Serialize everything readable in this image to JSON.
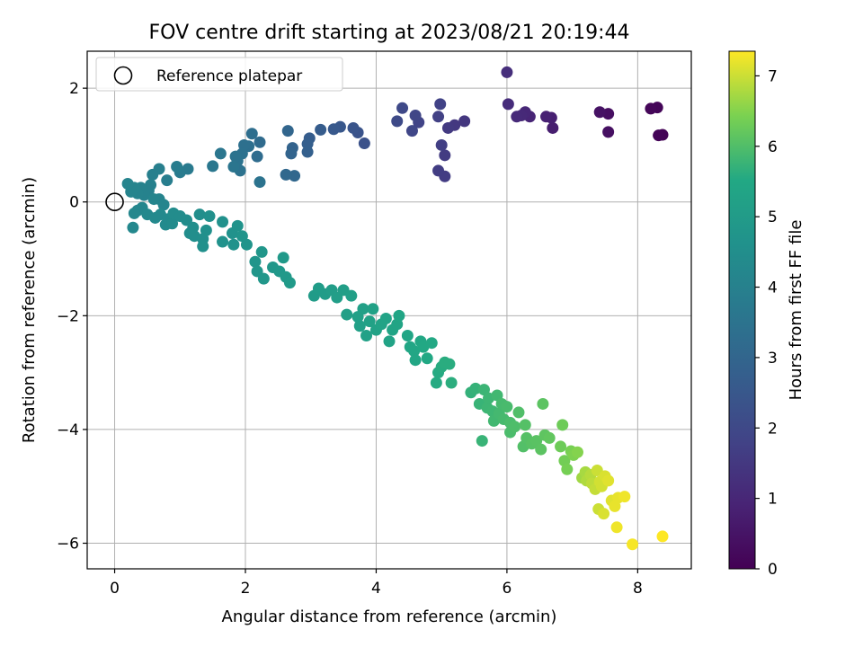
{
  "chart_data": {
    "type": "scatter",
    "title": "FOV centre drift starting at 2023/08/21 20:19:44",
    "xlabel": "Angular distance from reference (arcmin)",
    "ylabel": "Rotation from reference (arcmin)",
    "xlim": [
      -0.42,
      8.82
    ],
    "ylim": [
      -6.45,
      2.65
    ],
    "x_ticks": [
      0,
      2,
      4,
      6,
      8
    ],
    "y_ticks": [
      2,
      0,
      -2,
      -4,
      -6
    ],
    "x_tick_labels": [
      "0",
      "2",
      "4",
      "6",
      "8"
    ],
    "y_tick_labels": [
      "2",
      "0",
      "−2",
      "−4",
      "−6"
    ],
    "grid": true,
    "legend": {
      "position": "top-left",
      "entries": [
        "Reference platepar"
      ]
    },
    "reference_point": {
      "x": 0,
      "y": 0,
      "label": "Reference platepar"
    },
    "colormap": "viridis",
    "colorbar": {
      "label": "Hours from first FF file",
      "min": 0,
      "max": 7.35,
      "ticks": [
        0,
        1,
        2,
        3,
        4,
        5,
        6,
        7
      ],
      "tick_labels": [
        "0",
        "1",
        "2",
        "3",
        "4",
        "5",
        "6",
        "7"
      ]
    },
    "points": [
      {
        "x": 8.38,
        "y": 1.18,
        "c": 0.05
      },
      {
        "x": 8.32,
        "y": 1.17,
        "c": 0.08
      },
      {
        "x": 8.3,
        "y": 1.66,
        "c": 0.1
      },
      {
        "x": 8.2,
        "y": 1.64,
        "c": 0.15
      },
      {
        "x": 7.55,
        "y": 1.55,
        "c": 0.35
      },
      {
        "x": 7.55,
        "y": 1.23,
        "c": 0.4
      },
      {
        "x": 7.42,
        "y": 1.58,
        "c": 0.45
      },
      {
        "x": 6.7,
        "y": 1.3,
        "c": 0.75
      },
      {
        "x": 6.68,
        "y": 1.48,
        "c": 0.8
      },
      {
        "x": 6.6,
        "y": 1.5,
        "c": 0.85
      },
      {
        "x": 6.35,
        "y": 1.5,
        "c": 0.95
      },
      {
        "x": 6.28,
        "y": 1.58,
        "c": 1.0
      },
      {
        "x": 6.22,
        "y": 1.52,
        "c": 1.05
      },
      {
        "x": 6.15,
        "y": 1.5,
        "c": 1.1
      },
      {
        "x": 6.02,
        "y": 1.72,
        "c": 1.15
      },
      {
        "x": 6.0,
        "y": 2.28,
        "c": 1.2
      },
      {
        "x": 5.35,
        "y": 1.42,
        "c": 1.45
      },
      {
        "x": 5.2,
        "y": 1.35,
        "c": 1.5
      },
      {
        "x": 5.1,
        "y": 1.3,
        "c": 1.55
      },
      {
        "x": 5.05,
        "y": 0.82,
        "c": 1.6
      },
      {
        "x": 5.05,
        "y": 0.45,
        "c": 1.62
      },
      {
        "x": 4.95,
        "y": 0.55,
        "c": 1.65
      },
      {
        "x": 5.0,
        "y": 1.0,
        "c": 1.7
      },
      {
        "x": 4.95,
        "y": 1.5,
        "c": 1.75
      },
      {
        "x": 4.98,
        "y": 1.72,
        "c": 1.78
      },
      {
        "x": 4.65,
        "y": 1.4,
        "c": 1.85
      },
      {
        "x": 4.6,
        "y": 1.52,
        "c": 1.9
      },
      {
        "x": 4.55,
        "y": 1.25,
        "c": 1.95
      },
      {
        "x": 4.4,
        "y": 1.65,
        "c": 2.0
      },
      {
        "x": 4.32,
        "y": 1.42,
        "c": 2.05
      },
      {
        "x": 3.82,
        "y": 1.03,
        "c": 2.3
      },
      {
        "x": 3.72,
        "y": 1.22,
        "c": 2.35
      },
      {
        "x": 3.65,
        "y": 1.3,
        "c": 2.4
      },
      {
        "x": 3.45,
        "y": 1.32,
        "c": 2.5
      },
      {
        "x": 3.35,
        "y": 1.28,
        "c": 2.55
      },
      {
        "x": 3.15,
        "y": 1.27,
        "c": 2.65
      },
      {
        "x": 2.98,
        "y": 1.12,
        "c": 2.7
      },
      {
        "x": 2.95,
        "y": 1.02,
        "c": 2.75
      },
      {
        "x": 2.95,
        "y": 0.88,
        "c": 2.8
      },
      {
        "x": 2.72,
        "y": 0.95,
        "c": 2.9
      },
      {
        "x": 2.7,
        "y": 0.85,
        "c": 2.95
      },
      {
        "x": 2.65,
        "y": 1.25,
        "c": 3.0
      },
      {
        "x": 2.75,
        "y": 0.46,
        "c": 3.05
      },
      {
        "x": 2.62,
        "y": 0.48,
        "c": 3.1
      },
      {
        "x": 2.22,
        "y": 1.05,
        "c": 3.2
      },
      {
        "x": 2.18,
        "y": 0.8,
        "c": 3.25
      },
      {
        "x": 2.1,
        "y": 1.2,
        "c": 3.3
      },
      {
        "x": 2.05,
        "y": 0.98,
        "c": 3.35
      },
      {
        "x": 1.98,
        "y": 1.0,
        "c": 3.38
      },
      {
        "x": 1.95,
        "y": 0.85,
        "c": 3.4
      },
      {
        "x": 1.92,
        "y": 0.55,
        "c": 3.45
      },
      {
        "x": 1.88,
        "y": 0.72,
        "c": 3.48
      },
      {
        "x": 1.85,
        "y": 0.8,
        "c": 3.5
      },
      {
        "x": 1.82,
        "y": 0.62,
        "c": 3.55
      },
      {
        "x": 2.22,
        "y": 0.35,
        "c": 3.5
      },
      {
        "x": 1.62,
        "y": 0.85,
        "c": 3.6
      },
      {
        "x": 1.5,
        "y": 0.63,
        "c": 3.65
      },
      {
        "x": 1.12,
        "y": 0.58,
        "c": 3.75
      },
      {
        "x": 1.0,
        "y": 0.52,
        "c": 3.8
      },
      {
        "x": 0.95,
        "y": 0.62,
        "c": 3.85
      },
      {
        "x": 0.8,
        "y": 0.38,
        "c": 3.9
      },
      {
        "x": 0.68,
        "y": 0.58,
        "c": 3.92
      },
      {
        "x": 0.58,
        "y": 0.48,
        "c": 3.95
      },
      {
        "x": 0.55,
        "y": 0.3,
        "c": 4.0
      },
      {
        "x": 0.52,
        "y": 0.2,
        "c": 4.02
      },
      {
        "x": 0.45,
        "y": 0.12,
        "c": 4.05
      },
      {
        "x": 0.4,
        "y": 0.25,
        "c": 4.05
      },
      {
        "x": 0.35,
        "y": 0.15,
        "c": 4.08
      },
      {
        "x": 0.3,
        "y": 0.25,
        "c": 4.1
      },
      {
        "x": 0.25,
        "y": 0.18,
        "c": 4.1
      },
      {
        "x": 0.2,
        "y": 0.32,
        "c": 4.12
      },
      {
        "x": 0.68,
        "y": 0.05,
        "c": 4.12
      },
      {
        "x": 0.75,
        "y": -0.05,
        "c": 4.15
      },
      {
        "x": 0.6,
        "y": 0.05,
        "c": 4.15
      },
      {
        "x": 0.42,
        "y": -0.1,
        "c": 4.18
      },
      {
        "x": 0.35,
        "y": -0.15,
        "c": 4.2
      },
      {
        "x": 0.3,
        "y": -0.2,
        "c": 4.22
      },
      {
        "x": 0.28,
        "y": -0.45,
        "c": 4.25
      },
      {
        "x": 0.5,
        "y": -0.22,
        "c": 4.25
      },
      {
        "x": 0.62,
        "y": -0.28,
        "c": 4.3
      },
      {
        "x": 0.7,
        "y": -0.22,
        "c": 4.3
      },
      {
        "x": 0.78,
        "y": -0.4,
        "c": 4.35
      },
      {
        "x": 0.82,
        "y": -0.3,
        "c": 4.35
      },
      {
        "x": 0.88,
        "y": -0.38,
        "c": 4.38
      },
      {
        "x": 0.9,
        "y": -0.2,
        "c": 4.4
      },
      {
        "x": 1.0,
        "y": -0.25,
        "c": 4.42
      },
      {
        "x": 1.1,
        "y": -0.32,
        "c": 4.45
      },
      {
        "x": 1.15,
        "y": -0.55,
        "c": 4.45
      },
      {
        "x": 1.2,
        "y": -0.45,
        "c": 4.48
      },
      {
        "x": 1.22,
        "y": -0.6,
        "c": 4.5
      },
      {
        "x": 1.3,
        "y": -0.22,
        "c": 4.5
      },
      {
        "x": 1.35,
        "y": -0.65,
        "c": 4.52
      },
      {
        "x": 1.35,
        "y": -0.78,
        "c": 4.55
      },
      {
        "x": 1.4,
        "y": -0.5,
        "c": 4.55
      },
      {
        "x": 1.45,
        "y": -0.25,
        "c": 4.55
      },
      {
        "x": 1.65,
        "y": -0.35,
        "c": 4.6
      },
      {
        "x": 1.65,
        "y": -0.7,
        "c": 4.62
      },
      {
        "x": 1.8,
        "y": -0.55,
        "c": 4.65
      },
      {
        "x": 1.82,
        "y": -0.75,
        "c": 4.65
      },
      {
        "x": 1.88,
        "y": -0.42,
        "c": 4.68
      },
      {
        "x": 1.95,
        "y": -0.6,
        "c": 4.7
      },
      {
        "x": 2.02,
        "y": -0.75,
        "c": 4.72
      },
      {
        "x": 2.15,
        "y": -1.05,
        "c": 4.75
      },
      {
        "x": 2.18,
        "y": -1.22,
        "c": 4.78
      },
      {
        "x": 2.25,
        "y": -0.88,
        "c": 4.8
      },
      {
        "x": 2.28,
        "y": -1.35,
        "c": 4.82
      },
      {
        "x": 2.42,
        "y": -1.15,
        "c": 4.85
      },
      {
        "x": 2.52,
        "y": -1.22,
        "c": 4.88
      },
      {
        "x": 2.58,
        "y": -0.98,
        "c": 4.9
      },
      {
        "x": 2.62,
        "y": -1.32,
        "c": 4.92
      },
      {
        "x": 2.68,
        "y": -1.42,
        "c": 4.95
      },
      {
        "x": 3.05,
        "y": -1.65,
        "c": 5.0
      },
      {
        "x": 3.12,
        "y": -1.52,
        "c": 5.02
      },
      {
        "x": 3.22,
        "y": -1.62,
        "c": 5.05
      },
      {
        "x": 3.32,
        "y": -1.55,
        "c": 5.08
      },
      {
        "x": 3.4,
        "y": -1.68,
        "c": 5.1
      },
      {
        "x": 3.5,
        "y": -1.55,
        "c": 5.12
      },
      {
        "x": 3.55,
        "y": -1.98,
        "c": 5.15
      },
      {
        "x": 3.62,
        "y": -1.65,
        "c": 5.15
      },
      {
        "x": 3.72,
        "y": -2.02,
        "c": 5.18
      },
      {
        "x": 3.75,
        "y": -2.18,
        "c": 5.2
      },
      {
        "x": 3.8,
        "y": -1.88,
        "c": 5.2
      },
      {
        "x": 3.85,
        "y": -2.35,
        "c": 5.22
      },
      {
        "x": 3.9,
        "y": -2.1,
        "c": 5.25
      },
      {
        "x": 3.95,
        "y": -1.88,
        "c": 5.25
      },
      {
        "x": 4.0,
        "y": -2.25,
        "c": 5.28
      },
      {
        "x": 4.08,
        "y": -2.15,
        "c": 5.3
      },
      {
        "x": 4.15,
        "y": -2.05,
        "c": 5.3
      },
      {
        "x": 4.2,
        "y": -2.45,
        "c": 5.32
      },
      {
        "x": 4.25,
        "y": -2.25,
        "c": 5.35
      },
      {
        "x": 4.32,
        "y": -2.15,
        "c": 5.35
      },
      {
        "x": 4.35,
        "y": -2.0,
        "c": 5.38
      },
      {
        "x": 4.48,
        "y": -2.35,
        "c": 5.4
      },
      {
        "x": 4.52,
        "y": -2.55,
        "c": 5.42
      },
      {
        "x": 4.58,
        "y": -2.62,
        "c": 5.45
      },
      {
        "x": 4.6,
        "y": -2.78,
        "c": 5.45
      },
      {
        "x": 4.68,
        "y": -2.45,
        "c": 5.48
      },
      {
        "x": 4.72,
        "y": -2.55,
        "c": 5.5
      },
      {
        "x": 4.78,
        "y": -2.75,
        "c": 5.5
      },
      {
        "x": 4.85,
        "y": -2.48,
        "c": 5.52
      },
      {
        "x": 4.92,
        "y": -3.18,
        "c": 5.55
      },
      {
        "x": 4.95,
        "y": -3.0,
        "c": 5.55
      },
      {
        "x": 5.0,
        "y": -2.9,
        "c": 5.58
      },
      {
        "x": 5.05,
        "y": -2.82,
        "c": 5.6
      },
      {
        "x": 5.12,
        "y": -2.85,
        "c": 5.6
      },
      {
        "x": 5.15,
        "y": -3.18,
        "c": 5.62
      },
      {
        "x": 5.45,
        "y": -3.35,
        "c": 5.7
      },
      {
        "x": 5.52,
        "y": -3.28,
        "c": 5.72
      },
      {
        "x": 5.58,
        "y": -3.55,
        "c": 5.75
      },
      {
        "x": 5.62,
        "y": -4.2,
        "c": 5.75
      },
      {
        "x": 5.65,
        "y": -3.3,
        "c": 5.78
      },
      {
        "x": 5.7,
        "y": -3.62,
        "c": 5.8
      },
      {
        "x": 5.72,
        "y": -3.45,
        "c": 5.8
      },
      {
        "x": 5.78,
        "y": -3.68,
        "c": 5.82
      },
      {
        "x": 5.8,
        "y": -3.85,
        "c": 5.85
      },
      {
        "x": 5.85,
        "y": -3.4,
        "c": 5.85
      },
      {
        "x": 5.88,
        "y": -3.72,
        "c": 5.88
      },
      {
        "x": 5.92,
        "y": -3.55,
        "c": 5.9
      },
      {
        "x": 5.95,
        "y": -3.82,
        "c": 5.9
      },
      {
        "x": 6.0,
        "y": -3.6,
        "c": 5.92
      },
      {
        "x": 6.05,
        "y": -3.88,
        "c": 5.95
      },
      {
        "x": 6.05,
        "y": -4.05,
        "c": 5.95
      },
      {
        "x": 6.12,
        "y": -3.95,
        "c": 5.98
      },
      {
        "x": 6.18,
        "y": -3.7,
        "c": 6.0
      },
      {
        "x": 6.25,
        "y": -4.3,
        "c": 6.02
      },
      {
        "x": 6.28,
        "y": -3.92,
        "c": 6.05
      },
      {
        "x": 6.3,
        "y": -4.15,
        "c": 6.05
      },
      {
        "x": 6.38,
        "y": -4.25,
        "c": 6.08
      },
      {
        "x": 6.45,
        "y": -4.2,
        "c": 6.1
      },
      {
        "x": 6.52,
        "y": -4.35,
        "c": 6.12
      },
      {
        "x": 6.55,
        "y": -3.55,
        "c": 6.12
      },
      {
        "x": 6.58,
        "y": -4.1,
        "c": 6.15
      },
      {
        "x": 6.65,
        "y": -4.15,
        "c": 6.18
      },
      {
        "x": 6.82,
        "y": -4.3,
        "c": 6.3
      },
      {
        "x": 6.85,
        "y": -3.92,
        "c": 6.3
      },
      {
        "x": 6.88,
        "y": -4.55,
        "c": 6.35
      },
      {
        "x": 6.92,
        "y": -4.7,
        "c": 6.38
      },
      {
        "x": 6.98,
        "y": -4.38,
        "c": 6.4
      },
      {
        "x": 7.02,
        "y": -4.45,
        "c": 6.45
      },
      {
        "x": 7.08,
        "y": -4.4,
        "c": 6.5
      },
      {
        "x": 7.15,
        "y": -4.85,
        "c": 6.7
      },
      {
        "x": 7.2,
        "y": -4.75,
        "c": 6.75
      },
      {
        "x": 7.22,
        "y": -4.9,
        "c": 6.8
      },
      {
        "x": 7.28,
        "y": -4.8,
        "c": 6.85
      },
      {
        "x": 7.3,
        "y": -4.95,
        "c": 6.9
      },
      {
        "x": 7.35,
        "y": -5.05,
        "c": 6.95
      },
      {
        "x": 7.38,
        "y": -4.72,
        "c": 7.0
      },
      {
        "x": 7.4,
        "y": -5.4,
        "c": 7.0
      },
      {
        "x": 7.42,
        "y": -4.92,
        "c": 7.05
      },
      {
        "x": 7.45,
        "y": -5.0,
        "c": 7.05
      },
      {
        "x": 7.48,
        "y": -5.48,
        "c": 7.1
      },
      {
        "x": 7.5,
        "y": -4.82,
        "c": 7.1
      },
      {
        "x": 7.55,
        "y": -4.9,
        "c": 7.15
      },
      {
        "x": 7.6,
        "y": -5.25,
        "c": 7.15
      },
      {
        "x": 7.65,
        "y": -5.35,
        "c": 7.2
      },
      {
        "x": 7.7,
        "y": -5.2,
        "c": 7.2
      },
      {
        "x": 7.68,
        "y": -5.72,
        "c": 7.25
      },
      {
        "x": 7.8,
        "y": -5.18,
        "c": 7.25
      },
      {
        "x": 7.92,
        "y": -6.02,
        "c": 7.3
      },
      {
        "x": 8.38,
        "y": -5.88,
        "c": 7.35
      }
    ]
  }
}
